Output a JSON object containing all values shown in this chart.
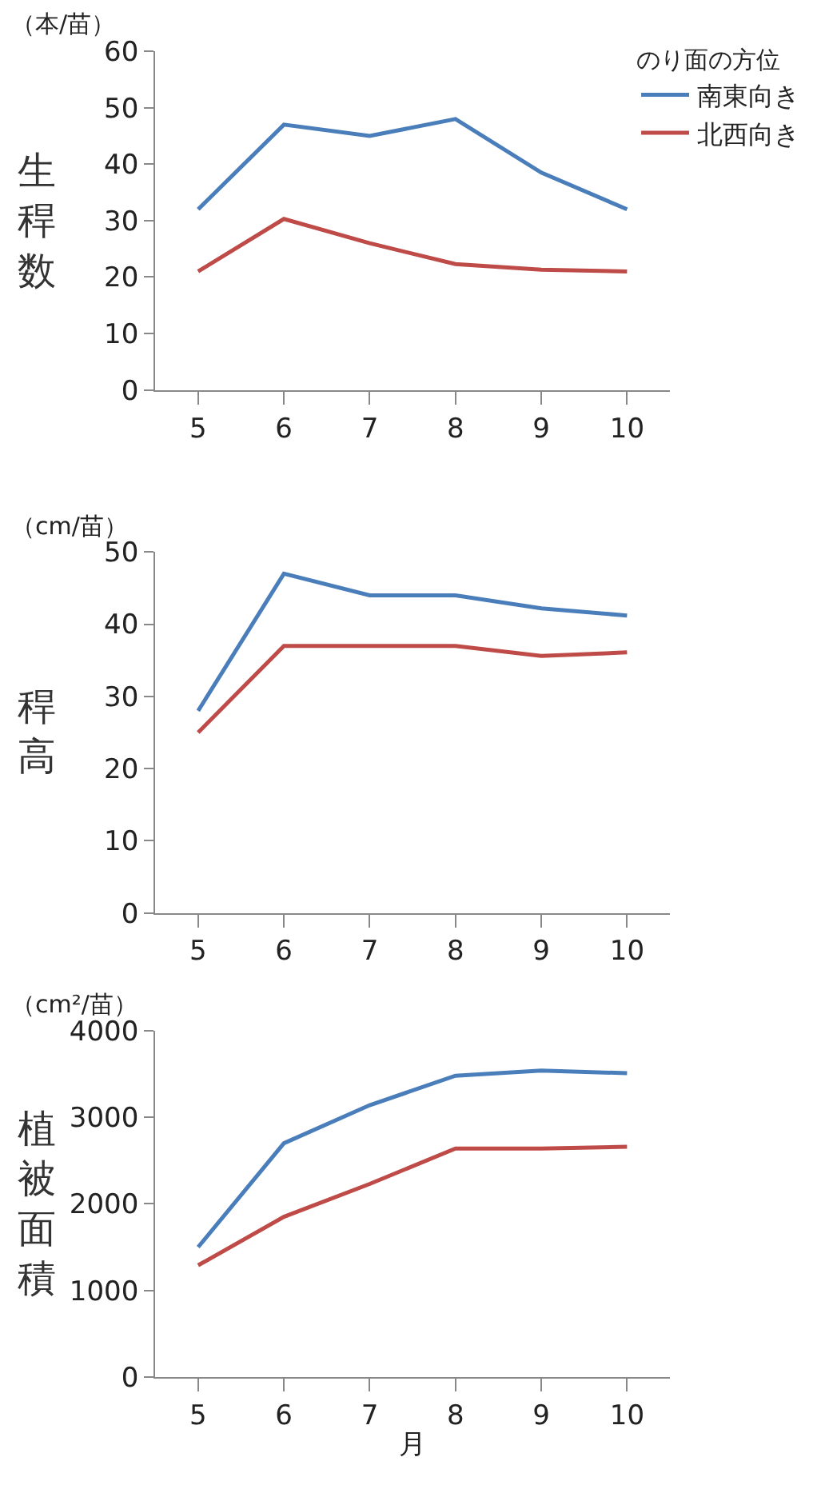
{
  "chart_data": [
    {
      "type": "line",
      "ylabel": "生稈数",
      "annotations": [
        "（本/苗）"
      ],
      "legend_title": "のり面の方位",
      "legend": "top right",
      "categories": [
        "5",
        "6",
        "7",
        "8",
        "9",
        "10"
      ],
      "ylim": [
        0,
        60
      ],
      "yticks": [
        0,
        10,
        20,
        30,
        40,
        50,
        60
      ],
      "series": [
        {
          "name": "南東向き",
          "color": "#4a7ebb",
          "values": [
            32,
            47,
            45,
            48,
            38.5,
            32
          ]
        },
        {
          "name": "北西向き",
          "color": "#be4b48",
          "values": [
            21,
            30.3,
            26,
            22.3,
            21.3,
            21
          ]
        }
      ]
    },
    {
      "type": "line",
      "ylabel": "稈高",
      "annotations": [
        "（cm/苗）"
      ],
      "legend": false,
      "categories": [
        "5",
        "6",
        "7",
        "8",
        "9",
        "10"
      ],
      "ylim": [
        0,
        50
      ],
      "yticks": [
        0,
        10,
        20,
        30,
        40,
        50
      ],
      "series": [
        {
          "color": "#4a7ebb",
          "values": [
            28,
            47,
            44,
            44,
            42.2,
            41.2
          ]
        },
        {
          "color": "#be4b48",
          "values": [
            25,
            37,
            37,
            37,
            35.6,
            36.1
          ]
        }
      ]
    },
    {
      "type": "line",
      "ylabel": "植被面積",
      "xlabel": "月",
      "annotations": [
        "（cm²/苗）"
      ],
      "legend": false,
      "categories": [
        "5",
        "6",
        "7",
        "8",
        "9",
        "10"
      ],
      "ylim": [
        0,
        4000
      ],
      "yticks": [
        0,
        1000,
        2000,
        3000,
        4000
      ],
      "series": [
        {
          "color": "#4a7ebb",
          "values": [
            1500,
            2700,
            3140,
            3480,
            3540,
            3510
          ]
        },
        {
          "color": "#be4b48",
          "values": [
            1290,
            1850,
            2230,
            2640,
            2640,
            2660
          ]
        }
      ]
    }
  ]
}
